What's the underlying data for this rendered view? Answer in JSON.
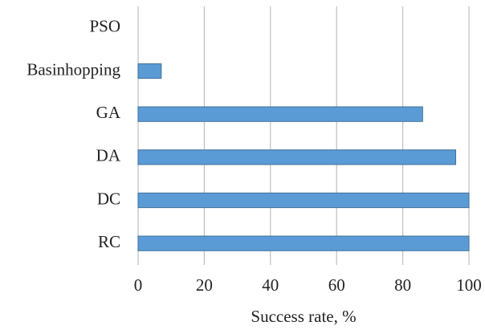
{
  "chart_data": {
    "type": "bar",
    "orientation": "horizontal",
    "categories": [
      "PSO",
      "Basinhopping",
      "GA",
      "DA",
      "DC",
      "RC"
    ],
    "values": [
      0,
      7,
      86,
      96,
      100,
      100
    ],
    "color": "#5b9bd5",
    "xlabel": "Success rate, %",
    "xlim": [
      0,
      100
    ],
    "xticks": [
      0,
      20,
      40,
      60,
      80,
      100
    ],
    "grid": true
  }
}
